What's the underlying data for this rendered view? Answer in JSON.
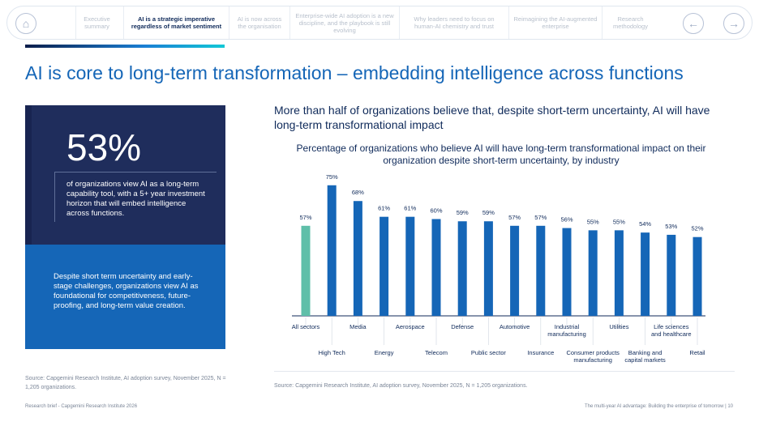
{
  "nav": {
    "items": [
      "Executive summary",
      "AI is a strategic imperative regardless of market sentiment",
      "AI is now across the organisation",
      "Enterprise-wide AI adoption is a new discipline, and the playbook is still evolving",
      "Why leaders need to focus on human-AI chemistry and trust",
      "Reimagining the AI-augmented enterprise",
      "Research methodology"
    ],
    "active_index": 1,
    "icons": [
      "home-icon",
      "arrow-left-icon",
      "arrow-right-icon"
    ]
  },
  "title": "AI is core to long-term transformation – embedding intelligence across functions",
  "stat": {
    "value": "53%",
    "text": "of organizations view AI as a long-term capability tool, with a 5+ year investment horizon that will embed intelligence across functions."
  },
  "callout": "Despite short term uncertainty and early-stage challenges, organizations view AI as foundational for competitiveness, future-proofing, and long-term value creation.",
  "left_source": "Source: Capgemini Research Institute, AI adoption survey, November 2025, N = 1,205 organizations.",
  "subtitle": "More than half of organizations believe that, despite short-term uncertainty, AI will have long-term transformational impact",
  "chart_data": {
    "type": "bar",
    "title": "Percentage of organizations who believe AI will have long-term transformational impact on their organization despite short-term uncertainty, by industry",
    "categories": [
      "All sectors",
      "High Tech",
      "Media",
      "Energy",
      "Aerospace",
      "Telecom",
      "Defense",
      "Public sector",
      "Automotive",
      "Insurance",
      "Industrial manufacturing",
      "Consumer products manufacturing",
      "Utilities",
      "Banking and capital markets",
      "Life sciences and healthcare",
      "Retail"
    ],
    "values": [
      57,
      75,
      68,
      61,
      61,
      60,
      59,
      59,
      57,
      57,
      56,
      55,
      55,
      54,
      53,
      52
    ],
    "data_labels": [
      "57%",
      "75%",
      "68%",
      "61%",
      "61%",
      "60%",
      "59%",
      "59%",
      "57%",
      "57%",
      "56%",
      "55%",
      "55%",
      "54%",
      "53%",
      "52%"
    ],
    "colors": {
      "highlight": "#5fbfa9",
      "default": "#1566b7"
    },
    "grid": false
  },
  "chart_source": "Source: Capgemini Research Institute, AI adoption survey, November 2025, N = 1,205 organizations.",
  "footer": {
    "left": "Research brief - Capgemini Research Institute 2026",
    "right": "The multi-year AI advantage: Building the enterprise of tomorrow  |  10"
  }
}
